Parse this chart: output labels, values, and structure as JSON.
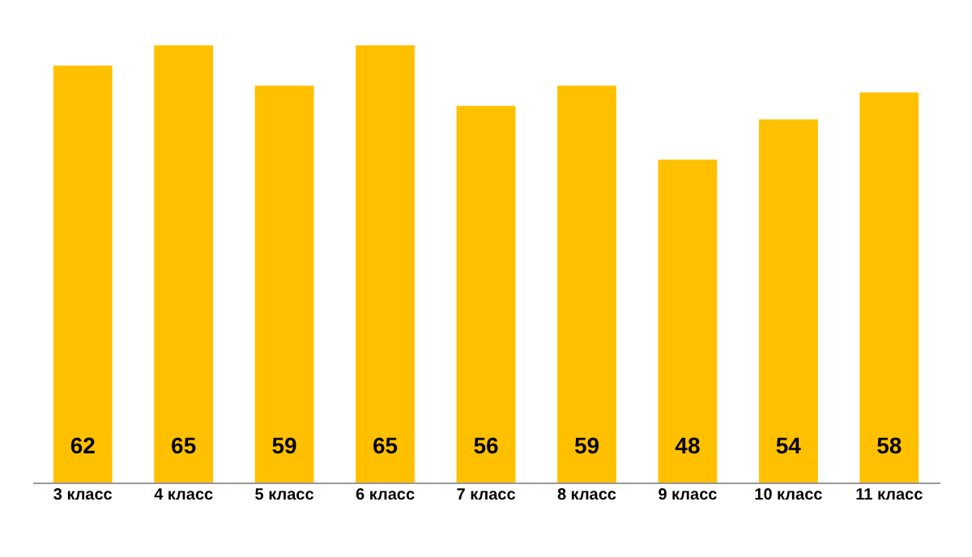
{
  "chart_data": {
    "type": "bar",
    "categories": [
      "3 класс",
      "4 класс",
      "5 класс",
      "6 класс",
      "7 класс",
      "8 класс",
      "9 класс",
      "10 класс",
      "11 класс"
    ],
    "values": [
      62,
      65,
      59,
      65,
      56,
      59,
      48,
      54,
      58
    ],
    "color": "#ffc000",
    "data_labels": true
  }
}
